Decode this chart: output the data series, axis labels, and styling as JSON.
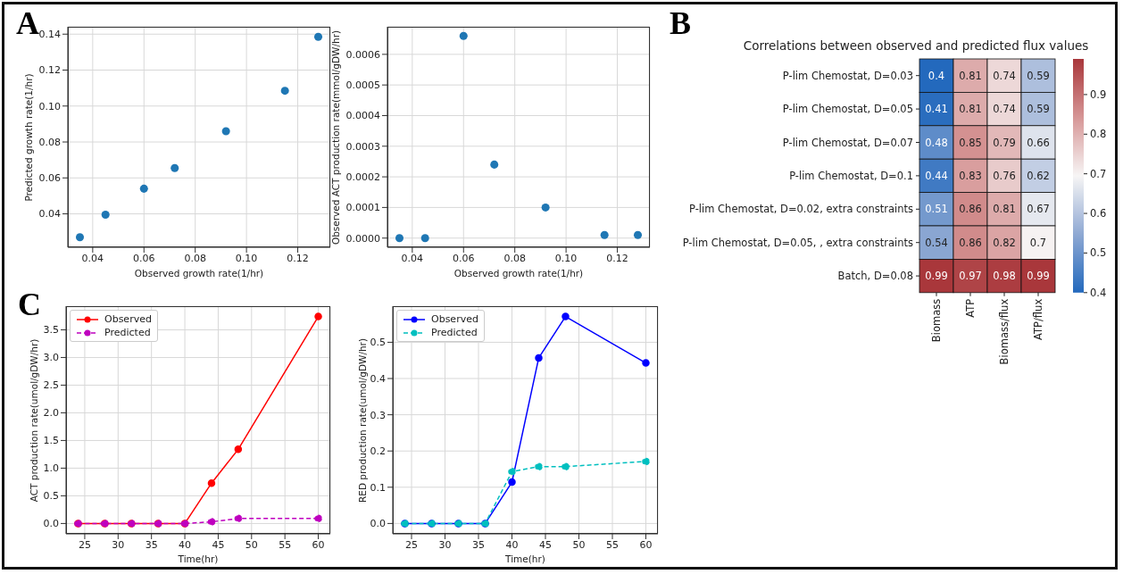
{
  "chart_data": [
    {
      "type": "scatter",
      "annotations": [
        "A"
      ],
      "xlabel": "Observed growth rate(1/hr)",
      "ylabel": "Predicted growth rate(1/hr)",
      "x": [
        0.035,
        0.045,
        0.06,
        0.072,
        0.092,
        0.115,
        0.128
      ],
      "series": [
        {
          "color": "#1f77b4",
          "values": [
            0.027,
            0.0395,
            0.054,
            0.0655,
            0.086,
            0.1085,
            0.1385
          ]
        }
      ],
      "xlim": [
        0.0303,
        0.1327
      ],
      "xticks": [
        {
          "value": 0.04,
          "label": "0.04"
        },
        {
          "value": 0.06,
          "label": "0.06"
        },
        {
          "value": 0.08,
          "label": "0.08"
        },
        {
          "value": 0.1,
          "label": "0.10"
        },
        {
          "value": 0.12,
          "label": "0.12"
        }
      ],
      "ylim": [
        0.0214,
        0.1441
      ],
      "yticks": [
        {
          "value": 0.04,
          "label": "0.04"
        },
        {
          "value": 0.06,
          "label": "0.06"
        },
        {
          "value": 0.08,
          "label": "0.08"
        },
        {
          "value": 0.1,
          "label": "0.10"
        },
        {
          "value": 0.12,
          "label": "0.12"
        },
        {
          "value": 0.14,
          "label": "0.14"
        }
      ],
      "grid": true,
      "marker": "circle"
    },
    {
      "type": "scatter",
      "xlabel": "Observed growth rate(1/hr)",
      "ylabel": "Observed ACT production rate(mmol/gDW/hr)",
      "x": [
        0.035,
        0.045,
        0.06,
        0.072,
        0.092,
        0.115,
        0.128
      ],
      "series": [
        {
          "color": "#1f77b4",
          "values": [
            0,
            0,
            0.00066,
            0.00024,
            0.0001,
            1e-05,
            1e-05
          ]
        }
      ],
      "xlim": [
        0.0303,
        0.1327
      ],
      "xticks": [
        {
          "value": 0.04,
          "label": "0.04"
        },
        {
          "value": 0.06,
          "label": "0.06"
        },
        {
          "value": 0.08,
          "label": "0.08"
        },
        {
          "value": 0.1,
          "label": "0.10"
        },
        {
          "value": 0.12,
          "label": "0.12"
        }
      ],
      "ylim": [
        -3e-05,
        0.00069
      ],
      "yticks": [
        {
          "value": 0,
          "label": "0.0000"
        },
        {
          "value": 0.0001,
          "label": "0.0001"
        },
        {
          "value": 0.0002,
          "label": "0.0002"
        },
        {
          "value": 0.0003,
          "label": "0.0003"
        },
        {
          "value": 0.0004,
          "label": "0.0004"
        },
        {
          "value": 0.0005,
          "label": "0.0005"
        },
        {
          "value": 0.0006,
          "label": "0.0006"
        }
      ],
      "grid": true,
      "marker": "circle"
    },
    {
      "type": "heatmap",
      "annotations": [
        "B"
      ],
      "title": "Correlations between observed and predicted flux values",
      "categories": [
        "Biomass",
        "ATP",
        "Biomass/flux",
        "ATP/flux"
      ],
      "y_categories": [
        "P-lim Chemostat, D=0.03",
        "P-lim Chemostat, D=0.05",
        "P-lim Chemostat, D=0.07",
        "P-lim Chemostat, D=0.1",
        "P-lim Chemostat, D=0.02, extra constraints",
        "P-lim Chemostat, D=0.05, , extra constraints",
        "Batch, D=0.08"
      ],
      "cells": [
        [
          0.4,
          0.81,
          0.74,
          0.59
        ],
        [
          0.41,
          0.81,
          0.74,
          0.59
        ],
        [
          0.48,
          0.85,
          0.79,
          0.66
        ],
        [
          0.44,
          0.83,
          0.76,
          0.62
        ],
        [
          0.51,
          0.86,
          0.81,
          0.67
        ],
        [
          0.54,
          0.86,
          0.82,
          0.7
        ],
        [
          0.99,
          0.97,
          0.98,
          0.99
        ]
      ],
      "data_labels": true,
      "clim": [
        0.4,
        0.99
      ],
      "cticks": [
        0.4,
        0.5,
        0.6,
        0.7,
        0.8,
        0.9
      ]
    },
    {
      "type": "line",
      "annotations": [
        "C"
      ],
      "xlabel": "Time(hr)",
      "ylabel": "ACT production rate(umol/gDW/hr)",
      "x": [
        24,
        28,
        32,
        36,
        40,
        44,
        48,
        60
      ],
      "series": [
        {
          "name": "Observed",
          "color": "#ff0000",
          "line_style": "solid",
          "values": [
            0,
            0,
            0,
            0,
            0,
            0.73,
            1.34,
            3.74
          ]
        },
        {
          "name": "Predicted",
          "color": "#bf00bf",
          "line_style": "dashed",
          "values": [
            0,
            0,
            0,
            0,
            0,
            0.03,
            0.09,
            0.09
          ]
        }
      ],
      "xlim": [
        22.2,
        61.8
      ],
      "xticks": [
        25,
        30,
        35,
        40,
        45,
        50,
        55,
        60
      ],
      "ylim": [
        -0.187,
        3.927
      ],
      "yticks": [
        {
          "value": 0,
          "label": "0.0"
        },
        {
          "value": 0.5,
          "label": "0.5"
        },
        {
          "value": 1,
          "label": "1.0"
        },
        {
          "value": 1.5,
          "label": "1.5"
        },
        {
          "value": 2,
          "label": "2.0"
        },
        {
          "value": 2.5,
          "label": "2.5"
        },
        {
          "value": 3,
          "label": "3.0"
        },
        {
          "value": 3.5,
          "label": "3.5"
        }
      ],
      "grid": true,
      "legend": "top left",
      "marker": "circle"
    },
    {
      "type": "line",
      "xlabel": "Time(hr)",
      "ylabel": "RED production rate(umol/gDW/hr)",
      "x": [
        24,
        28,
        32,
        36,
        40,
        44,
        48,
        60
      ],
      "series": [
        {
          "name": "Observed",
          "color": "#0000ff",
          "line_style": "solid",
          "values": [
            0,
            0,
            0,
            0,
            0.114,
            0.457,
            0.571,
            0.443
          ]
        },
        {
          "name": "Predicted",
          "color": "#00bfbf",
          "line_style": "dashed",
          "values": [
            0,
            0,
            0,
            0,
            0.143,
            0.157,
            0.157,
            0.171
          ]
        }
      ],
      "xlim": [
        22.2,
        61.8
      ],
      "xticks": [
        25,
        30,
        35,
        40,
        45,
        50,
        55,
        60
      ],
      "ylim": [
        -0.0286,
        0.5996
      ],
      "yticks": [
        {
          "value": 0,
          "label": "0.0"
        },
        {
          "value": 0.1,
          "label": "0.1"
        },
        {
          "value": 0.2,
          "label": "0.2"
        },
        {
          "value": 0.3,
          "label": "0.3"
        },
        {
          "value": 0.4,
          "label": "0.4"
        },
        {
          "value": 0.5,
          "label": "0.5"
        }
      ],
      "grid": true,
      "legend": "top left",
      "marker": "circle"
    }
  ]
}
